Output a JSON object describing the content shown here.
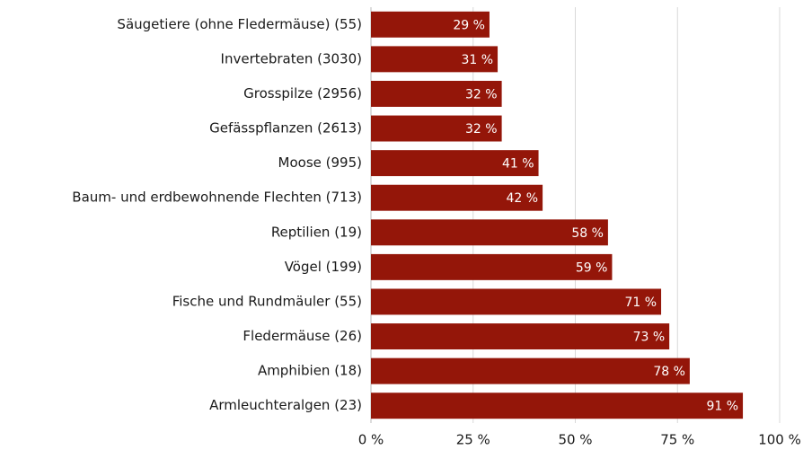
{
  "chart_data": {
    "type": "hbar",
    "categories": [
      "Säugetiere (ohne Fledermäuse) (55)",
      "Invertebraten (3030)",
      "Grosspilze (2956)",
      "Gefässpflanzen (2613)",
      "Moose (995)",
      "Baum- und erdbewohnende Flechten (713)",
      "Reptilien (19)",
      "Vögel (199)",
      "Fische und Rundmäuler (55)",
      "Fledermäuse (26)",
      "Amphibien (18)",
      "Armleuchteralgen (23)"
    ],
    "values": [
      29,
      31,
      32,
      32,
      41,
      42,
      58,
      59,
      71,
      73,
      78,
      91
    ],
    "value_labels": [
      "29 %",
      "31 %",
      "32 %",
      "32 %",
      "41 %",
      "42 %",
      "58 %",
      "59 %",
      "71 %",
      "73 %",
      "78 %",
      "91 %"
    ],
    "color": "#941609",
    "xlim": [
      0,
      100
    ],
    "xticks": [
      {
        "value": 0,
        "label": "0 %"
      },
      {
        "value": 25,
        "label": "25 %"
      },
      {
        "value": 50,
        "label": "50 %"
      },
      {
        "value": 75,
        "label": "75 %"
      },
      {
        "value": 100,
        "label": "100 %"
      }
    ],
    "grid": true
  }
}
